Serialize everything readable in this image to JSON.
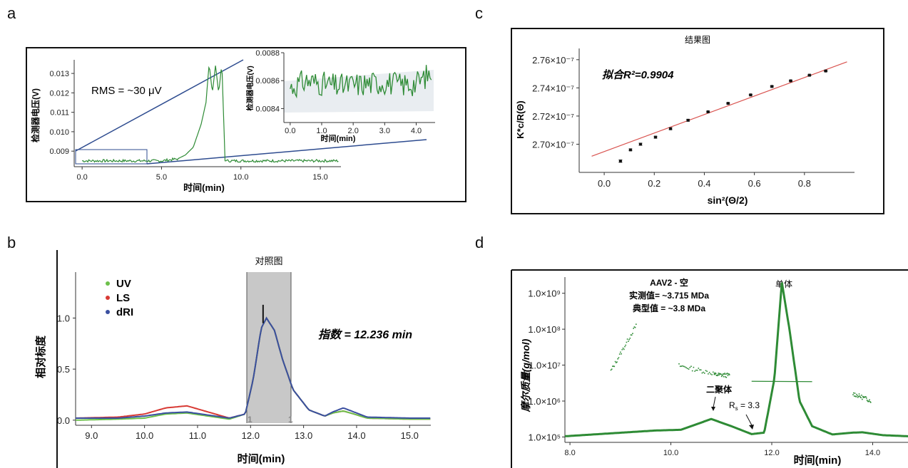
{
  "colors": {
    "green": "#2e8b35",
    "blue_line": "#2d4b8f",
    "red": "#d83a34",
    "blue": "#3a4fa0",
    "uv": "#6cc04a",
    "fit_red": "#d9534f"
  },
  "panels": {
    "a": {
      "label": "a",
      "rms": "RMS = ~30 μV",
      "ylabel": "检测器电压(V)",
      "xlabel": "时间(min)",
      "yticks": [
        "0.013",
        "0.012",
        "0.011",
        "0.010",
        "0.009"
      ],
      "xticks": [
        "0.0",
        "5.0",
        "10.0",
        "15.0"
      ],
      "inset": {
        "ylabel": "检测器电压(V)",
        "xlabel": "时间(min)",
        "yticks": [
          "0.0088",
          "0.0086",
          "0.0084"
        ],
        "xticks": [
          "0.0",
          "1.0",
          "2.0",
          "3.0",
          "4.0"
        ]
      }
    },
    "b": {
      "label": "b",
      "title": "对照图",
      "ylabel": "相对标度",
      "xlabel": "时间(min)",
      "annotation": "指数 = 12.236 min",
      "marker_left": "1",
      "marker_right": "1",
      "yticks": [
        "1.0",
        "0.5",
        "0.0"
      ],
      "xticks": [
        "9.0",
        "10.0",
        "11.0",
        "12.0",
        "13.0",
        "14.0",
        "15.0"
      ],
      "legend": [
        {
          "name": "UV",
          "color": "#6cc04a"
        },
        {
          "name": "LS",
          "color": "#d83a34"
        },
        {
          "name": "dRI",
          "color": "#3a4fa0"
        }
      ]
    },
    "c": {
      "label": "c",
      "title": "结果图",
      "annotation": "拟合R²=0.9904",
      "ylabel": "K*c/R(Θ)",
      "xlabel": "sin²(Θ/2)",
      "yticks": [
        "2.76×10⁻⁷",
        "2.74×10⁻⁷",
        "2.72×10⁻⁷",
        "2.70×10⁻⁷"
      ],
      "xticks": [
        "0.0",
        "0.2",
        "0.4",
        "0.6",
        "0.8"
      ]
    },
    "d": {
      "label": "d",
      "title_line1": "AAV2 - 空",
      "title_line2": "实测值= ~3.715 MDa",
      "title_line3": "典型值 = ~3.8 MDa",
      "monomer": "单体",
      "dimer": "二聚体",
      "rs_main": "R",
      "rs_sub": "s",
      "rs_value": " = 3.3",
      "ylabel": "摩尔质量(g/mol)",
      "xlabel": "时间(min)",
      "yticks": [
        "1.0×10⁹",
        "1.0×10⁸",
        "1.0×10⁷",
        "1.0×10⁶",
        "1.0×10⁵"
      ],
      "xticks": [
        "8.0",
        "10.0",
        "12.0",
        "14.0"
      ]
    }
  },
  "chart_data": [
    {
      "panel": "a",
      "type": "line",
      "xlabel": "时间(min)",
      "ylabel": "检测器电压(V)",
      "xlim": [
        -0.5,
        16.3
      ],
      "ylim": [
        0.0082,
        0.0137
      ],
      "series": [
        {
          "x": [
            0,
            1,
            2,
            3,
            4,
            5,
            6,
            6.5,
            7,
            7.5,
            7.8,
            8.0,
            8.2,
            8.4,
            8.6,
            8.8,
            9.0,
            10,
            12,
            14,
            16.2
          ],
          "values": [
            0.0085,
            0.0085,
            0.0085,
            0.0085,
            0.0085,
            0.0085,
            0.0086,
            0.0088,
            0.0092,
            0.0104,
            0.0115,
            0.0135,
            0.012,
            0.0134,
            0.012,
            0.0135,
            0.0085,
            0.0085,
            0.0085,
            0.0085,
            0.0085
          ]
        }
      ]
    },
    {
      "panel": "a-inset",
      "type": "line",
      "xlabel": "时间(min)",
      "ylabel": "检测器电压(V)",
      "xlim": [
        -0.2,
        4.6
      ],
      "ylim": [
        0.0083,
        0.0088
      ],
      "series": [
        {
          "x": [
            0,
            0.5,
            1,
            1.5,
            2,
            2.5,
            3,
            3.5,
            4,
            4.5
          ],
          "values": [
            0.00855,
            0.0086,
            0.00858,
            0.00856,
            0.00857,
            0.00858,
            0.00859,
            0.00857,
            0.00858,
            0.00866
          ]
        }
      ]
    },
    {
      "panel": "b",
      "type": "line",
      "xlabel": "时间(min)",
      "ylabel": "相对标度",
      "xlim": [
        8.7,
        15.4
      ],
      "ylim": [
        -0.05,
        1.45
      ],
      "x": [
        8.7,
        9.5,
        10.0,
        10.4,
        10.8,
        11.2,
        11.6,
        11.9,
        12.05,
        12.2,
        12.3,
        12.45,
        12.6,
        12.8,
        13.1,
        13.4,
        13.55,
        13.75,
        13.95,
        14.2,
        15.0,
        15.4
      ],
      "series": [
        {
          "name": "UV",
          "values": [
            0.0,
            0.01,
            0.02,
            0.06,
            0.07,
            0.04,
            0.01,
            0.06,
            0.4,
            0.9,
            1.0,
            0.88,
            0.6,
            0.3,
            0.1,
            0.04,
            0.07,
            0.09,
            0.06,
            0.02,
            0.01,
            0.01
          ]
        },
        {
          "name": "LS",
          "values": [
            0.02,
            0.03,
            0.06,
            0.12,
            0.14,
            0.08,
            0.02,
            0.06,
            0.4,
            0.9,
            1.0,
            0.88,
            0.6,
            0.3,
            0.1,
            0.04,
            0.07,
            0.09,
            0.06,
            0.02,
            0.01,
            0.01
          ]
        },
        {
          "name": "dRI",
          "values": [
            0.02,
            0.02,
            0.04,
            0.07,
            0.08,
            0.05,
            0.02,
            0.06,
            0.4,
            0.9,
            1.0,
            0.88,
            0.6,
            0.3,
            0.1,
            0.04,
            0.08,
            0.12,
            0.08,
            0.03,
            0.02,
            0.02
          ]
        }
      ],
      "highlight_range": [
        11.95,
        12.75
      ],
      "peak_index": 12.236
    },
    {
      "panel": "c",
      "type": "scatter",
      "title": "结果图",
      "xlabel": "sin²(Θ/2)",
      "ylabel": "K*c/R(Θ)",
      "xlim": [
        -0.1,
        1.0
      ],
      "ylim": [
        2.68e-07,
        2.768e-07
      ],
      "x": [
        0.065,
        0.105,
        0.145,
        0.205,
        0.265,
        0.335,
        0.415,
        0.495,
        0.585,
        0.67,
        0.745,
        0.82,
        0.885
      ],
      "values": [
        2.688e-07,
        2.696e-07,
        2.7e-07,
        2.705e-07,
        2.711e-07,
        2.717e-07,
        2.723e-07,
        2.729e-07,
        2.735e-07,
        2.741e-07,
        2.745e-07,
        2.749e-07,
        2.752e-07
      ],
      "errors": [
        8e-11,
        6e-11,
        7e-11,
        6e-11,
        6e-11,
        6e-11,
        4e-11,
        4e-11,
        4e-11,
        4e-11,
        3e-11,
        3e-11,
        3e-11
      ],
      "fit": {
        "x": [
          -0.05,
          0.97
        ],
        "values": [
          2.6915e-07,
          2.7585e-07
        ]
      }
    },
    {
      "panel": "d",
      "type": "line",
      "xlabel": "时间(min)",
      "ylabel": "摩尔质量(g/mol)",
      "xlim": [
        7.9,
        14.7
      ],
      "ylim_log10": [
        4.85,
        9.45
      ],
      "series": [
        {
          "name": "trace",
          "x": [
            7.9,
            8.8,
            9.7,
            10.2,
            10.5,
            10.8,
            11.2,
            11.6,
            11.85,
            12.05,
            12.2,
            12.35,
            12.55,
            12.8,
            13.2,
            13.6,
            13.8,
            14.2,
            14.7
          ],
          "values_log10": [
            5.02,
            5.1,
            5.18,
            5.2,
            5.35,
            5.5,
            5.3,
            5.08,
            5.12,
            6.6,
            9.3,
            8.0,
            6.0,
            5.3,
            5.07,
            5.12,
            5.13,
            5.05,
            5.02
          ]
        },
        {
          "name": "molar-mass",
          "x": [
            11.6,
            12.3,
            12.8
          ],
          "values_log10": [
            6.55,
            6.55,
            6.54
          ]
        }
      ]
    }
  ]
}
